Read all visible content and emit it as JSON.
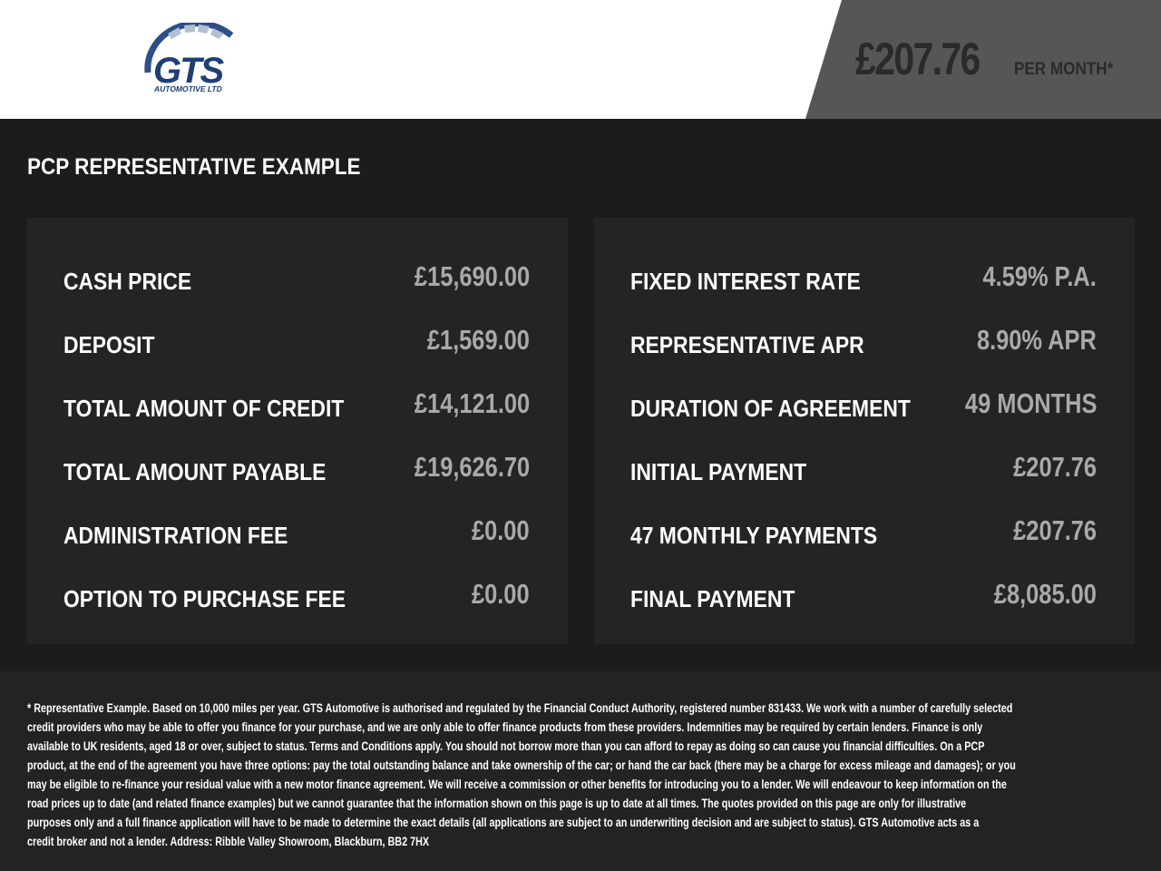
{
  "header": {
    "logo_text": "GTS",
    "logo_subtext": "AUTOMOTIVE LTD",
    "monthly_price": "£207.76",
    "per_month_label": "PER MONTH*",
    "brand_color": "#1f3f73"
  },
  "title": "PCP REPRESENTATIVE EXAMPLE",
  "left_panel": [
    {
      "label": "CASH PRICE",
      "value": "£15,690.00"
    },
    {
      "label": "DEPOSIT",
      "value": "£1,569.00"
    },
    {
      "label": "TOTAL AMOUNT OF CREDIT",
      "value": "£14,121.00"
    },
    {
      "label": "TOTAL AMOUNT PAYABLE",
      "value": "£19,626.70"
    },
    {
      "label": "ADMINISTRATION FEE",
      "value": "£0.00"
    },
    {
      "label": "OPTION TO PURCHASE FEE",
      "value": "£0.00"
    }
  ],
  "right_panel": [
    {
      "label": "FIXED INTEREST RATE",
      "value": "4.59% P.A."
    },
    {
      "label": "REPRESENTATIVE APR",
      "value": "8.90% APR"
    },
    {
      "label": "DURATION OF AGREEMENT",
      "value": "49 MONTHS"
    },
    {
      "label": "INITIAL PAYMENT",
      "value": "£207.76"
    },
    {
      "label": "47 MONTHLY PAYMENTS",
      "value": "£207.76"
    },
    {
      "label": "FINAL PAYMENT",
      "value": "£8,085.00"
    }
  ],
  "disclaimer": [
    "* Representative Example. Based on 10,000 miles per year. GTS Automotive is authorised and regulated by the Financial Conduct Authority, registered number 831433. We work with a number of carefully selected",
    "credit providers who may be able to offer you finance for your purchase, and we are only able to offer finance products from these providers. Indemnities may be required by certain lenders. Finance is only",
    "available to UK residents, aged 18 or over, subject to status. Terms and Conditions apply. You should not borrow more than you can afford to repay as doing so can cause you financial difficulties. On a PCP",
    "product, at the end of the agreement you have three options: pay the total outstanding balance and take ownership of the car; or hand the car back (there may be a charge for excess mileage and damages); or you",
    "may be eligible to re-finance your residual value with a new motor finance agreement. We will receive a commission or other benefits for introducing you to a lender. We will endeavour to keep information on the",
    "road prices up to date (and related finance examples) but we cannot guarantee that the information shown on this page is up to date at all times. The quotes provided on this page are only for illustrative",
    "purposes only and a full finance application will have to be made to determine the exact details (all applications are subject to an underwriting decision and are subject to status). GTS Automotive acts as a",
    "credit broker and not a lender. Address: Ribble Valley Showroom, Blackburn, BB2 7HX"
  ]
}
